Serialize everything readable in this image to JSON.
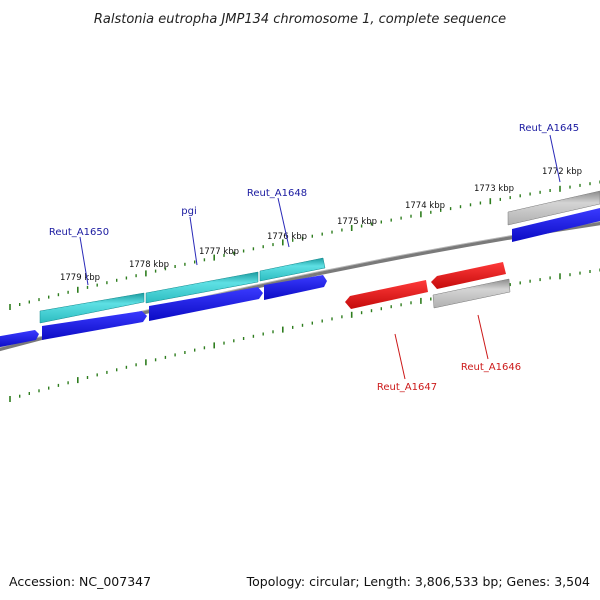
{
  "title": "Ralstonia eutropha JMP134 chromosome 1, complete sequence",
  "footer": {
    "accession": "Accession: NC_007347",
    "summary": "Topology: circular; Length: 3,806,533 bp; Genes: 3,504"
  },
  "colors": {
    "backbone": "#808080",
    "ticks": "#2e7d1e",
    "forward_gene": "#1515dd",
    "forward_cds": "#3ec8cc",
    "reverse_gene": "#dd1515",
    "reverse_cds": "#bdbdbd",
    "forward_label": "#1a1aa0",
    "reverse_label": "#cc1a1a"
  },
  "scale_labels": [
    "1772 kbp",
    "1773 kbp",
    "1774 kbp",
    "1775 kbp",
    "1776 kbp",
    "1777 kbp",
    "1778 kbp",
    "1779 kbp"
  ],
  "gene_labels": {
    "forward": [
      "Reut_A1645",
      "Reut_A1648",
      "pgi",
      "Reut_A1650"
    ],
    "reverse": [
      "Reut_A1646",
      "Reut_A1647"
    ]
  }
}
